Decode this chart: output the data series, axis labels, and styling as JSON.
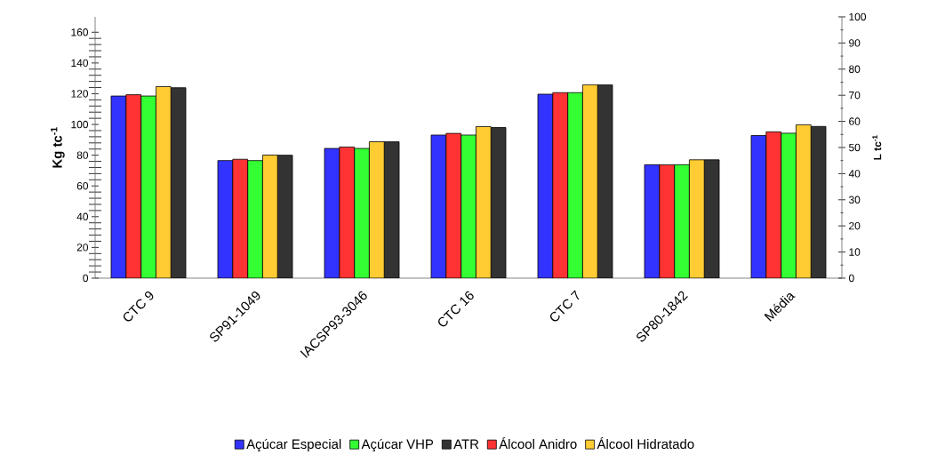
{
  "chart_data": {
    "type": "bar",
    "ylabel": "Kg tc$^{-1}$",
    "y2label": "L tc$^{-1}$",
    "categories": [
      "CTC 9",
      "SP91-1049",
      "IACSP93-3046",
      "CTC 16",
      "CTC 7",
      "SP80-1842",
      "Média"
    ],
    "series": [
      {
        "name": "Açúcar Especial",
        "color": "#3333ff",
        "values": [
          118.5,
          76.5,
          84.4,
          93.1,
          119.7,
          73.8,
          92.8
        ]
      },
      {
        "name": "Álcool Anidro",
        "color": "#ff3333",
        "axis": "y2",
        "values": [
          70.2,
          45.5,
          50.2,
          55.4,
          71.0,
          43.4,
          56.0
        ]
      },
      {
        "name": "Açúcar VHP",
        "color": "#33ff33",
        "values": [
          118.5,
          76.5,
          84.4,
          93.1,
          120.7,
          73.8,
          94.3
        ]
      },
      {
        "name": "Álcool Hidratado",
        "color": "#ffcc33",
        "axis": "y2",
        "values": [
          73.3,
          47.1,
          52.2,
          58.0,
          74.0,
          45.3,
          58.7
        ]
      },
      {
        "name": "ATR",
        "color": "#333333",
        "values": [
          123.9,
          80.0,
          88.7,
          98.0,
          125.8,
          77.0,
          98.7
        ]
      }
    ],
    "ylim": [
      0,
      170
    ],
    "yticks": [
      0,
      20,
      40,
      60,
      80,
      100,
      120,
      140,
      160
    ],
    "y2lim": [
      0,
      100
    ],
    "y2ticks": [
      0,
      10,
      20,
      30,
      40,
      50,
      60,
      70,
      80,
      90,
      100
    ],
    "legend": "bottom"
  }
}
